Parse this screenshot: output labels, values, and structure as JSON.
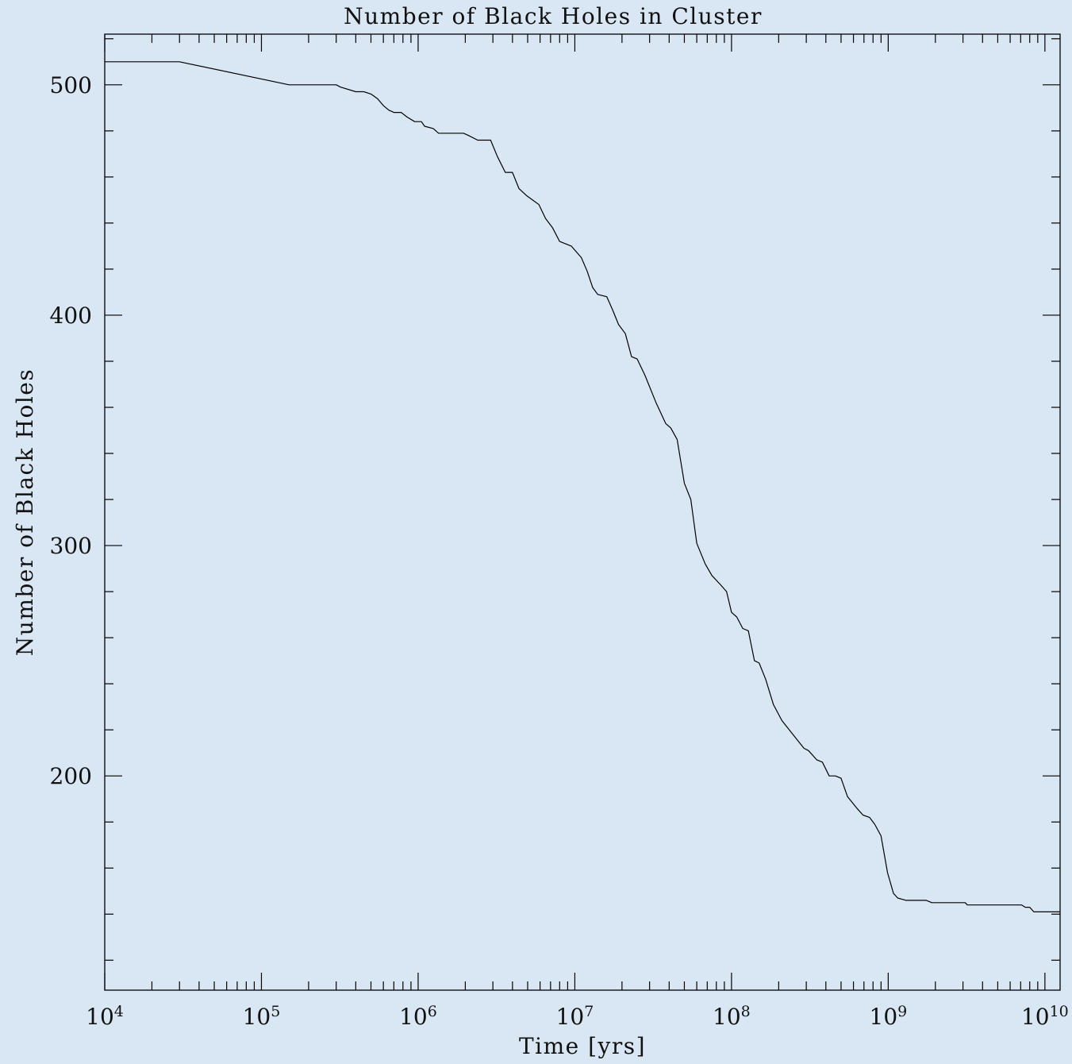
{
  "chart_data": {
    "type": "line",
    "title": "Number of Black Holes in Cluster",
    "xlabel": "Time [yrs]",
    "ylabel": "Number of Black Holes",
    "xscale": "log",
    "xlim": [
      10000,
      12500000000
    ],
    "ylim": [
      107,
      522
    ],
    "grid": false,
    "legend": "none",
    "line_color": "#000000",
    "background": "#d9e7f4",
    "x_ticks": [
      {
        "value": 10000,
        "base": "10",
        "exp": "4"
      },
      {
        "value": 100000,
        "base": "10",
        "exp": "5"
      },
      {
        "value": 1000000,
        "base": "10",
        "exp": "6"
      },
      {
        "value": 10000000,
        "base": "10",
        "exp": "7"
      },
      {
        "value": 100000000,
        "base": "10",
        "exp": "8"
      },
      {
        "value": 1000000000,
        "base": "10",
        "exp": "9"
      },
      {
        "value": 10000000000,
        "base": "10",
        "exp": "10"
      }
    ],
    "y_ticks": [
      {
        "value": 200,
        "label": "200"
      },
      {
        "value": 300,
        "label": "300"
      },
      {
        "value": 400,
        "label": "400"
      },
      {
        "value": 500,
        "label": "500"
      }
    ],
    "series": [
      {
        "points": [
          [
            10000,
            510
          ],
          [
            30000,
            510
          ],
          [
            150000,
            500
          ],
          [
            300000,
            500
          ],
          [
            320000,
            499
          ],
          [
            400000,
            497
          ],
          [
            450000,
            497
          ],
          [
            500000,
            496
          ],
          [
            550000,
            494
          ],
          [
            600000,
            491
          ],
          [
            650000,
            489
          ],
          [
            700000,
            488
          ],
          [
            780000,
            488
          ],
          [
            850000,
            486
          ],
          [
            950000,
            484
          ],
          [
            1050000,
            484
          ],
          [
            1100000,
            482
          ],
          [
            1250000,
            481
          ],
          [
            1350000,
            479
          ],
          [
            1950000,
            479
          ],
          [
            2100000,
            478
          ],
          [
            2400000,
            476
          ],
          [
            2900000,
            476
          ],
          [
            3200000,
            469
          ],
          [
            3600000,
            462
          ],
          [
            4000000,
            462
          ],
          [
            4400000,
            455
          ],
          [
            4900000,
            452
          ],
          [
            5900000,
            448
          ],
          [
            6500000,
            442
          ],
          [
            7200000,
            438
          ],
          [
            8000000,
            432
          ],
          [
            9500000,
            430
          ],
          [
            11000000,
            425
          ],
          [
            12000000,
            419
          ],
          [
            13000000,
            412
          ],
          [
            14000000,
            409
          ],
          [
            16000000,
            408
          ],
          [
            17500000,
            402
          ],
          [
            19000000,
            396
          ],
          [
            21000000,
            392
          ],
          [
            23000000,
            382
          ],
          [
            25000000,
            381
          ],
          [
            28000000,
            374
          ],
          [
            33000000,
            362
          ],
          [
            38000000,
            353
          ],
          [
            41000000,
            351
          ],
          [
            45000000,
            346
          ],
          [
            50000000,
            327
          ],
          [
            55000000,
            320
          ],
          [
            60000000,
            301
          ],
          [
            68000000,
            292
          ],
          [
            75000000,
            287
          ],
          [
            85000000,
            283
          ],
          [
            93000000,
            280
          ],
          [
            100000000,
            271
          ],
          [
            108000000,
            269
          ],
          [
            118000000,
            264
          ],
          [
            128000000,
            263
          ],
          [
            140000000,
            250
          ],
          [
            150000000,
            249
          ],
          [
            165000000,
            242
          ],
          [
            185000000,
            231
          ],
          [
            210000000,
            224
          ],
          [
            260000000,
            216
          ],
          [
            290000000,
            212
          ],
          [
            310000000,
            211
          ],
          [
            350000000,
            207
          ],
          [
            380000000,
            206
          ],
          [
            420000000,
            200
          ],
          [
            460000000,
            200
          ],
          [
            500000000,
            199
          ],
          [
            550000000,
            191
          ],
          [
            630000000,
            186
          ],
          [
            690000000,
            183
          ],
          [
            760000000,
            182
          ],
          [
            820000000,
            179
          ],
          [
            900000000,
            174
          ],
          [
            990000000,
            158
          ],
          [
            1080000000,
            149
          ],
          [
            1150000000,
            147
          ],
          [
            1300000000,
            146
          ],
          [
            1750000000,
            146
          ],
          [
            1900000000,
            145
          ],
          [
            3100000000,
            145
          ],
          [
            3200000000,
            144
          ],
          [
            7100000000,
            144
          ],
          [
            7500000000,
            143
          ],
          [
            8000000000,
            143
          ],
          [
            8500000000,
            141
          ],
          [
            12500000000,
            141
          ]
        ]
      }
    ]
  }
}
